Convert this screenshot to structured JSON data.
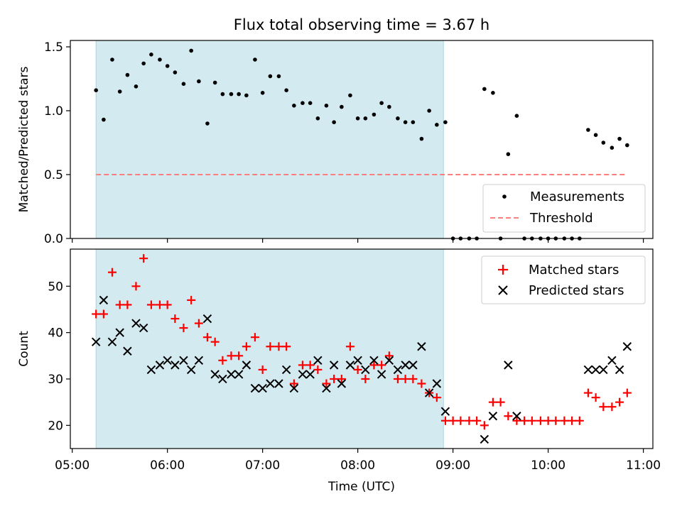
{
  "chart_data": {
    "type": "scatter",
    "title": "Flux total observing time = 3.67 h",
    "xlabel": "Time (UTC)",
    "x_unit": "hours since 00:00 UTC",
    "xlim": [
      4.98,
      11.1
    ],
    "xticks": [
      5,
      6,
      7,
      8,
      9,
      10,
      11
    ],
    "xtick_labels": [
      "05:00",
      "06:00",
      "07:00",
      "08:00",
      "09:00",
      "10:00",
      "11:00"
    ],
    "shaded_interval": {
      "x_start": 5.25,
      "x_end": 8.9,
      "color": "#d3eaf1"
    },
    "panels": [
      {
        "id": "ratio",
        "ylabel": "Matched/Predicted stars",
        "ylim": [
          0,
          1.55
        ],
        "yticks": [
          0.0,
          0.5,
          1.0,
          1.5
        ],
        "ytick_labels": [
          "0.0",
          "0.5",
          "1.0",
          "1.5"
        ],
        "legend_position": "bottom-right",
        "legend": [
          "Measurements",
          "Threshold"
        ],
        "series": [
          {
            "name": "Measurements",
            "marker": "dot",
            "color": "#000000",
            "x": [
              5.25,
              5.33,
              5.42,
              5.5,
              5.58,
              5.67,
              5.75,
              5.83,
              5.92,
              6.0,
              6.08,
              6.17,
              6.25,
              6.33,
              6.42,
              6.5,
              6.58,
              6.67,
              6.75,
              6.83,
              6.92,
              7.0,
              7.08,
              7.17,
              7.25,
              7.33,
              7.42,
              7.5,
              7.58,
              7.67,
              7.75,
              7.83,
              7.92,
              8.0,
              8.08,
              8.17,
              8.25,
              8.33,
              8.42,
              8.5,
              8.58,
              8.67,
              8.75,
              8.83,
              8.92,
              9.0,
              9.08,
              9.17,
              9.25,
              9.33,
              9.42,
              9.5,
              9.58,
              9.67,
              9.75,
              9.83,
              9.92,
              10.0,
              10.08,
              10.17,
              10.25,
              10.33,
              10.42,
              10.5,
              10.58,
              10.67,
              10.75,
              10.83
            ],
            "y": [
              1.16,
              0.93,
              1.4,
              1.15,
              1.28,
              1.19,
              1.37,
              1.44,
              1.4,
              1.35,
              1.3,
              1.21,
              1.47,
              1.23,
              0.9,
              1.22,
              1.13,
              1.13,
              1.13,
              1.12,
              1.4,
              1.14,
              1.27,
              1.27,
              1.16,
              1.04,
              1.06,
              1.06,
              0.94,
              1.04,
              0.91,
              1.03,
              1.12,
              0.94,
              0.94,
              0.97,
              1.06,
              1.03,
              0.94,
              0.91,
              0.91,
              0.78,
              1.0,
              0.89,
              0.91,
              0.0,
              0.0,
              0.0,
              0.0,
              1.17,
              1.14,
              0.0,
              0.66,
              0.96,
              0.0,
              0.0,
              0.0,
              0.0,
              0.0,
              0.0,
              0.0,
              0.0,
              0.85,
              0.81,
              0.75,
              0.71,
              0.78,
              0.73
            ]
          },
          {
            "name": "Threshold",
            "style": "dashed",
            "color": "#ff7f7f",
            "x": [
              5.25,
              10.83
            ],
            "y": [
              0.5,
              0.5
            ]
          }
        ]
      },
      {
        "id": "count",
        "ylabel": "Count",
        "ylim": [
          15,
          58
        ],
        "yticks": [
          20,
          30,
          40,
          50
        ],
        "ytick_labels": [
          "20",
          "30",
          "40",
          "50"
        ],
        "legend_position": "top-right",
        "legend": [
          "Matched stars",
          "Predicted stars"
        ],
        "series": [
          {
            "name": "Matched stars",
            "marker": "plus",
            "color": "#ff0000",
            "x": [
              5.25,
              5.33,
              5.42,
              5.5,
              5.58,
              5.67,
              5.75,
              5.83,
              5.92,
              6.0,
              6.08,
              6.17,
              6.25,
              6.33,
              6.42,
              6.5,
              6.58,
              6.67,
              6.75,
              6.83,
              6.92,
              7.0,
              7.08,
              7.17,
              7.25,
              7.33,
              7.42,
              7.5,
              7.58,
              7.67,
              7.75,
              7.83,
              7.92,
              8.0,
              8.08,
              8.17,
              8.25,
              8.33,
              8.42,
              8.5,
              8.58,
              8.67,
              8.75,
              8.83,
              8.92,
              9.0,
              9.08,
              9.17,
              9.25,
              9.33,
              9.42,
              9.5,
              9.58,
              9.67,
              9.75,
              9.83,
              9.92,
              10.0,
              10.08,
              10.17,
              10.25,
              10.33,
              10.42,
              10.5,
              10.58,
              10.67,
              10.75,
              10.83
            ],
            "y": [
              44,
              44,
              53,
              46,
              46,
              50,
              56,
              46,
              46,
              46,
              43,
              41,
              47,
              42,
              39,
              38,
              34,
              35,
              35,
              37,
              39,
              32,
              37,
              37,
              37,
              29,
              33,
              33,
              32,
              29,
              30,
              30,
              37,
              32,
              30,
              33,
              33,
              35,
              30,
              30,
              30,
              29,
              27,
              26,
              21,
              21,
              21,
              21,
              21,
              20,
              25,
              25,
              22,
              21,
              21,
              21,
              21,
              21,
              21,
              21,
              21,
              21,
              27,
              26,
              24,
              24,
              25,
              27
            ]
          },
          {
            "name": "Predicted stars",
            "marker": "x",
            "color": "#000000",
            "x": [
              5.25,
              5.33,
              5.42,
              5.5,
              5.58,
              5.67,
              5.75,
              5.83,
              5.92,
              6.0,
              6.08,
              6.17,
              6.25,
              6.33,
              6.42,
              6.5,
              6.58,
              6.67,
              6.75,
              6.83,
              6.92,
              7.0,
              7.08,
              7.17,
              7.25,
              7.33,
              7.42,
              7.5,
              7.58,
              7.67,
              7.75,
              7.83,
              7.92,
              8.0,
              8.08,
              8.17,
              8.25,
              8.33,
              8.42,
              8.5,
              8.58,
              8.67,
              8.75,
              8.83,
              8.92,
              9.33,
              9.42,
              9.58,
              9.67,
              10.42,
              10.5,
              10.58,
              10.67,
              10.75,
              10.83
            ],
            "y": [
              38,
              47,
              38,
              40,
              36,
              42,
              41,
              32,
              33,
              34,
              33,
              34,
              32,
              34,
              43,
              31,
              30,
              31,
              31,
              33,
              28,
              28,
              29,
              29,
              32,
              28,
              31,
              31,
              34,
              28,
              33,
              29,
              33,
              34,
              32,
              34,
              31,
              34,
              32,
              33,
              33,
              37,
              27,
              29,
              23,
              17,
              22,
              33,
              22,
              32,
              32,
              32,
              34,
              32,
              37
            ]
          }
        ]
      }
    ]
  }
}
